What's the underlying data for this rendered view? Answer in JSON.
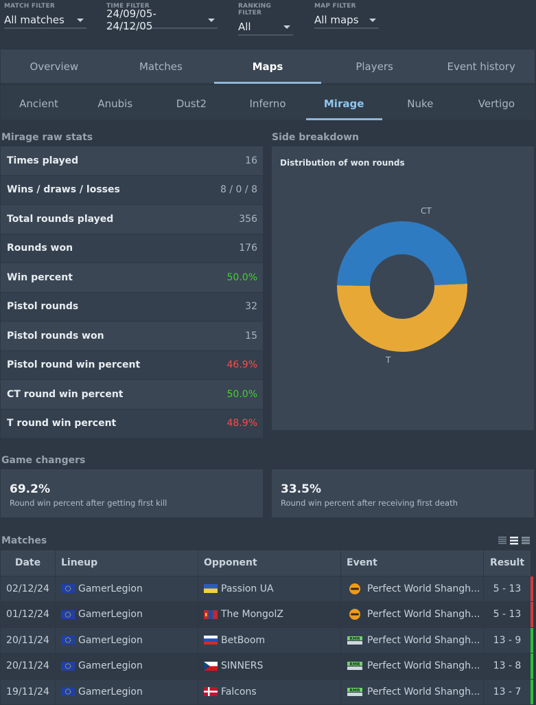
{
  "filters": [
    {
      "label": "MATCH FILTER",
      "value": "All matches"
    },
    {
      "label": "TIME FILTER",
      "value": "24/09/05-24/12/05"
    },
    {
      "label": "RANKING FILTER",
      "value": "All"
    },
    {
      "label": "MAP FILTER",
      "value": "All maps"
    }
  ],
  "main_tabs": [
    "Overview",
    "Matches",
    "Maps",
    "Players",
    "Event history"
  ],
  "main_tabs_active": "Maps",
  "map_tabs": [
    "Ancient",
    "Anubis",
    "Dust2",
    "Inferno",
    "Mirage",
    "Nuke",
    "Vertigo"
  ],
  "map_tabs_active": "Mirage",
  "raw_stats": {
    "title": "Mirage raw stats",
    "rows": [
      {
        "label": "Times played",
        "value": "16",
        "color": "neutral"
      },
      {
        "label": "Wins / draws / losses",
        "value": "8 / 0 / 8",
        "color": "neutral"
      },
      {
        "label": "Total rounds played",
        "value": "356",
        "color": "neutral"
      },
      {
        "label": "Rounds won",
        "value": "176",
        "color": "neutral"
      },
      {
        "label": "Win percent",
        "value": "50.0%",
        "color": "green"
      },
      {
        "label": "Pistol rounds",
        "value": "32",
        "color": "neutral"
      },
      {
        "label": "Pistol rounds won",
        "value": "15",
        "color": "neutral"
      },
      {
        "label": "Pistol round win percent",
        "value": "46.9%",
        "color": "red"
      },
      {
        "label": "CT round win percent",
        "value": "50.0%",
        "color": "green"
      },
      {
        "label": "T round win percent",
        "value": "48.9%",
        "color": "red"
      }
    ]
  },
  "side_breakdown": {
    "title": "Side breakdown",
    "chart_title": "Distribution of won rounds",
    "ct_label": "CT",
    "t_label": "T"
  },
  "chart_data": {
    "type": "pie",
    "title": "Distribution of won rounds",
    "categories": [
      "CT",
      "T"
    ],
    "values": [
      0.49,
      0.51
    ],
    "colors": [
      "#2f7bc1",
      "#e8a836"
    ],
    "donut": true
  },
  "game_changers": {
    "title": "Game changers",
    "cards": [
      {
        "value": "69.2%",
        "caption": "Round win percent after getting first kill"
      },
      {
        "value": "33.5%",
        "caption": "Round win percent after receiving first death"
      }
    ]
  },
  "matches": {
    "title": "Matches",
    "headers": [
      "Date",
      "Lineup",
      "Opponent",
      "Event",
      "Result"
    ],
    "rows": [
      {
        "date": "02/12/24",
        "lineup": "GamerLegion",
        "opponent": "Passion UA",
        "opp_flag": "ua",
        "event": "Perfect World Shangh...",
        "event_icon": "pw-major-icon",
        "result": "5 - 13",
        "outcome": "loss"
      },
      {
        "date": "01/12/24",
        "lineup": "GamerLegion",
        "opponent": "The MongolZ",
        "opp_flag": "mn",
        "event": "Perfect World Shangh...",
        "event_icon": "pw-major-icon",
        "result": "5 - 13",
        "outcome": "loss"
      },
      {
        "date": "20/11/24",
        "lineup": "GamerLegion",
        "opponent": "BetBoom",
        "opp_flag": "ru",
        "event": "Perfect World Shangh...",
        "event_icon": "rmr-icon",
        "result": "13 - 9",
        "outcome": "win"
      },
      {
        "date": "20/11/24",
        "lineup": "GamerLegion",
        "opponent": "SINNERS",
        "opp_flag": "cz",
        "event": "Perfect World Shangh...",
        "event_icon": "rmr-icon",
        "result": "13 - 8",
        "outcome": "win"
      },
      {
        "date": "19/11/24",
        "lineup": "GamerLegion",
        "opponent": "Falcons",
        "opp_flag": "dk",
        "event": "Perfect World Shangh...",
        "event_icon": "rmr-icon",
        "result": "13 - 7",
        "outcome": "win"
      }
    ]
  }
}
